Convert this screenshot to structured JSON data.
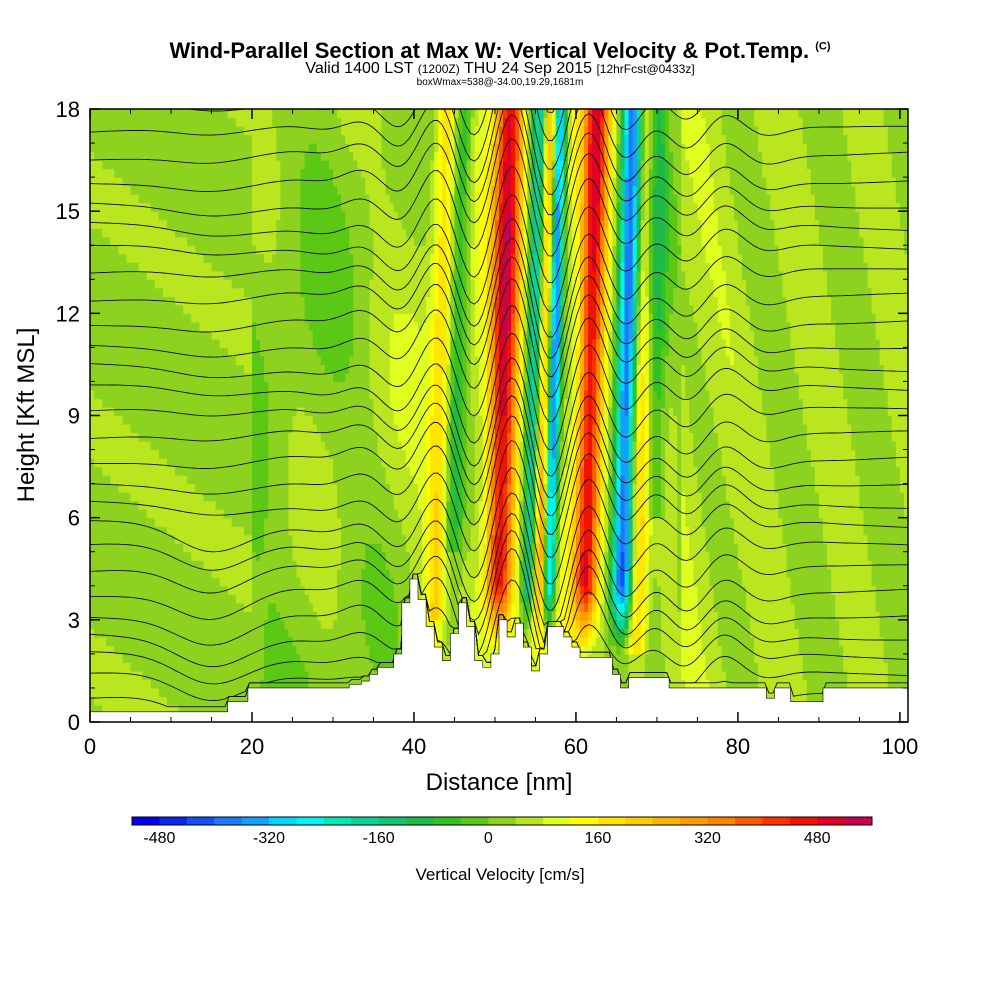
{
  "chart_data": {
    "type": "heatmap",
    "title": "Wind-Parallel Section at Max W: Vertical Velocity & Pot.Temp.",
    "title_mark": "(C)",
    "subtitle_valid": "Valid 1400 LST",
    "subtitle_utc": "(1200Z)",
    "subtitle_date": "THU 24 Sep 2015",
    "subtitle_fcst": "[12hrFcst@0433z]",
    "subtitle2": "boxWmax=538@-34.00,19.29,1681m",
    "xlabel": "Distance [nm]",
    "ylabel": "Height [Kft MSL]",
    "xlim": [
      0,
      101
    ],
    "ylim": [
      0,
      18
    ],
    "x_ticks": [
      0,
      20,
      40,
      60,
      80,
      100
    ],
    "y_ticks": [
      0,
      3,
      6,
      9,
      12,
      15,
      18
    ],
    "colorbar": {
      "label": "Vertical Velocity [cm/s]",
      "range": [
        -520,
        560
      ],
      "step": 40,
      "tick_values": [
        -480,
        -320,
        -160,
        0,
        160,
        320,
        480
      ],
      "tick_labels": [
        "-480",
        "-320",
        "-160",
        "0",
        "160",
        "320",
        "480"
      ],
      "colors": [
        "#0000ee",
        "#0a28f0",
        "#1450f5",
        "#1e78fa",
        "#14a0ff",
        "#00d7ff",
        "#00f5f0",
        "#05e6b4",
        "#0ad296",
        "#14c373",
        "#1eb946",
        "#32c323",
        "#5ac814",
        "#8cd21e",
        "#b9e61e",
        "#e1ff1e",
        "#ffff00",
        "#ffe600",
        "#ffcd00",
        "#ffb400",
        "#ff9b00",
        "#ff8200",
        "#ff5a00",
        "#ff3200",
        "#f01400",
        "#dc0028",
        "#c80050"
      ]
    },
    "updrafts": [
      {
        "x0": 47.5,
        "x1": 53.0,
        "peak_cm_s": 400
      },
      {
        "x0": 53.5,
        "x1": 56.8,
        "peak_cm_s": 538
      },
      {
        "x0": 58.5,
        "x1": 63.5,
        "peak_cm_s": 400
      }
    ],
    "downdrafts": [
      {
        "x0": 52.0,
        "x1": 57.0,
        "peak_cm_s": -480
      },
      {
        "x0": 55.0,
        "x1": 58.0,
        "peak_cm_s": -440
      },
      {
        "x0": 63.0,
        "x1": 68.0,
        "peak_cm_s": -480
      }
    ],
    "terrain_kft": [
      [
        0,
        0.3
      ],
      [
        17,
        0.3
      ],
      [
        17,
        0.6
      ],
      [
        19.5,
        0.6
      ],
      [
        19.5,
        1.0
      ],
      [
        32,
        1.0
      ],
      [
        32,
        1.1
      ],
      [
        33.5,
        1.1
      ],
      [
        33.5,
        1.2
      ],
      [
        34.5,
        1.2
      ],
      [
        34.5,
        1.4
      ],
      [
        35.5,
        1.4
      ],
      [
        35.5,
        1.6
      ],
      [
        37.5,
        1.6
      ],
      [
        37.5,
        2.0
      ],
      [
        38.5,
        2.0
      ],
      [
        38.5,
        3.5
      ],
      [
        39.5,
        3.5
      ],
      [
        39.5,
        4.2
      ],
      [
        40.5,
        4.2
      ],
      [
        40.5,
        3.6
      ],
      [
        41.5,
        3.6
      ],
      [
        41.5,
        2.8
      ],
      [
        42.5,
        2.8
      ],
      [
        42.5,
        2.2
      ],
      [
        43.5,
        2.2
      ],
      [
        43.5,
        1.8
      ],
      [
        44.5,
        1.8
      ],
      [
        44.5,
        2.6
      ],
      [
        45.5,
        2.6
      ],
      [
        45.5,
        3.5
      ],
      [
        46.5,
        3.5
      ],
      [
        46.5,
        2.8
      ],
      [
        47.5,
        2.8
      ],
      [
        47.5,
        1.8
      ],
      [
        48.5,
        1.8
      ],
      [
        48.5,
        1.6
      ],
      [
        49.5,
        1.6
      ],
      [
        49.5,
        2.0
      ],
      [
        50.5,
        2.0
      ],
      [
        50.5,
        3.0
      ],
      [
        51.5,
        3.0
      ],
      [
        51.5,
        2.5
      ],
      [
        52.5,
        2.5
      ],
      [
        52.5,
        2.9
      ],
      [
        53.5,
        2.9
      ],
      [
        53.5,
        2.2
      ],
      [
        54.5,
        2.2
      ],
      [
        54.5,
        1.5
      ],
      [
        55.5,
        1.5
      ],
      [
        55.5,
        2.0
      ],
      [
        56.5,
        2.0
      ],
      [
        56.5,
        2.8
      ],
      [
        58.5,
        2.8
      ],
      [
        58.5,
        2.5
      ],
      [
        59.5,
        2.5
      ],
      [
        59.5,
        2.2
      ],
      [
        60.5,
        2.2
      ],
      [
        60.5,
        1.9
      ],
      [
        64.5,
        1.9
      ],
      [
        64.5,
        1.4
      ],
      [
        65.5,
        1.4
      ],
      [
        65.5,
        1.0
      ],
      [
        66.5,
        1.0
      ],
      [
        66.5,
        1.3
      ],
      [
        71.5,
        1.3
      ],
      [
        71.5,
        1.0
      ],
      [
        83.5,
        1.0
      ],
      [
        83.5,
        0.7
      ],
      [
        84.5,
        0.7
      ],
      [
        84.5,
        1.0
      ],
      [
        86.5,
        1.0
      ],
      [
        86.5,
        0.6
      ],
      [
        90.5,
        0.6
      ],
      [
        90.5,
        1.0
      ],
      [
        101,
        1.0
      ]
    ],
    "theta_contour_count": 30
  }
}
